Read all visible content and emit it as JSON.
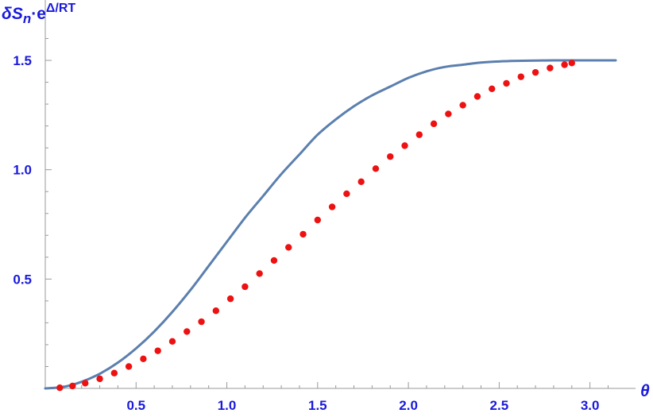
{
  "chart_data": {
    "type": "line",
    "title": "",
    "xlabel": "θ",
    "ylabel": {
      "main": "δS",
      "subscript": "n",
      "dot": "·e",
      "superscript": "Δ/RT"
    },
    "xlim": [
      0,
      3.1416
    ],
    "ylim": [
      0,
      1.5
    ],
    "x_ticks": [
      0.5,
      1.0,
      1.5,
      2.0,
      2.5,
      3.0
    ],
    "x_tick_labels": [
      "0.5",
      "1.0",
      "1.5",
      "2.0",
      "2.5",
      "3.0"
    ],
    "y_ticks": [
      0.5,
      1.0,
      1.5
    ],
    "y_tick_labels": [
      "0.5",
      "1.0",
      "1.5"
    ],
    "grid": false,
    "series": [
      {
        "kind": "curve",
        "x": [
          0,
          0.1,
          0.2,
          0.3,
          0.4,
          0.5,
          0.6,
          0.7,
          0.8,
          0.9,
          1.0,
          1.1,
          1.2,
          1.3,
          1.4,
          1.5,
          1.6,
          1.7,
          1.8,
          1.9,
          2.0,
          2.1,
          2.2,
          2.3,
          2.4,
          2.5,
          2.6,
          2.7,
          2.8,
          2.9,
          3.0,
          3.1,
          3.1416
        ],
        "y": [
          0.0,
          0.007,
          0.03,
          0.067,
          0.118,
          0.183,
          0.26,
          0.35,
          0.45,
          0.56,
          0.67,
          0.78,
          0.88,
          0.98,
          1.07,
          1.16,
          1.23,
          1.29,
          1.34,
          1.38,
          1.42,
          1.45,
          1.47,
          1.48,
          1.49,
          1.495,
          1.498,
          1.499,
          1.5,
          1.5,
          1.5,
          1.5,
          1.5
        ],
        "color": "#5b7fae"
      },
      {
        "kind": "points",
        "x": [
          0.08,
          0.15,
          0.22,
          0.3,
          0.38,
          0.46,
          0.54,
          0.62,
          0.7,
          0.78,
          0.86,
          0.94,
          1.02,
          1.1,
          1.18,
          1.26,
          1.34,
          1.42,
          1.5,
          1.58,
          1.66,
          1.74,
          1.82,
          1.9,
          1.98,
          2.06,
          2.14,
          2.22,
          2.3,
          2.38,
          2.46,
          2.54,
          2.62,
          2.7,
          2.78,
          2.86,
          2.9
        ],
        "y": [
          0.003,
          0.011,
          0.024,
          0.044,
          0.07,
          0.1,
          0.135,
          0.172,
          0.215,
          0.26,
          0.305,
          0.355,
          0.41,
          0.465,
          0.525,
          0.585,
          0.645,
          0.705,
          0.77,
          0.83,
          0.89,
          0.945,
          1.005,
          1.06,
          1.11,
          1.16,
          1.21,
          1.255,
          1.295,
          1.335,
          1.37,
          1.395,
          1.425,
          1.445,
          1.465,
          1.48,
          1.488
        ],
        "color": "#ee1111"
      }
    ]
  }
}
